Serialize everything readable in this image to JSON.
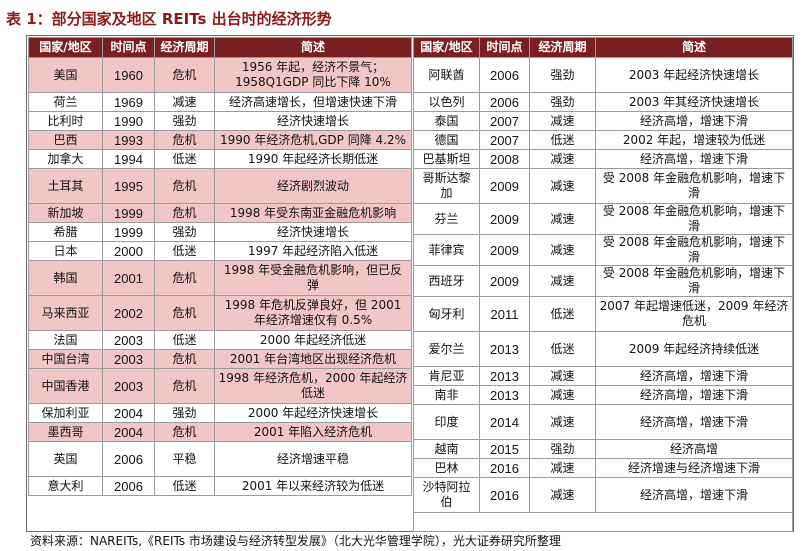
{
  "title": "表 1：部分国家及地区 REITs 出台时的经济形势",
  "headers": [
    "国家/地区",
    "时间点",
    "经济周期",
    "简述"
  ],
  "left_rows": [
    {
      "country": "美国",
      "year": "1960",
      "cycle": "危机",
      "desc": "1956 年起，经济不景气；1958Q1GDP 同比下降 10%",
      "crisis": true,
      "h": "r2"
    },
    {
      "country": "荷兰",
      "year": "1969",
      "cycle": "减速",
      "desc": "经济高速增长，但增速快速下滑",
      "crisis": false,
      "h": "r1"
    },
    {
      "country": "比利时",
      "year": "1990",
      "cycle": "强劲",
      "desc": "经济快速增长",
      "crisis": false,
      "h": "r1"
    },
    {
      "country": "巴西",
      "year": "1993",
      "cycle": "危机",
      "desc": "1990 年经济危机,GDP 同降 4.2%",
      "crisis": true,
      "h": "r1"
    },
    {
      "country": "加拿大",
      "year": "1994",
      "cycle": "低迷",
      "desc": "1990 年起经济长期低迷",
      "crisis": false,
      "h": "r1"
    },
    {
      "country": "土耳其",
      "year": "1995",
      "cycle": "危机",
      "desc": "经济剧烈波动",
      "crisis": true,
      "h": "r2"
    },
    {
      "country": "新加坡",
      "year": "1999",
      "cycle": "危机",
      "desc": "1998 年受东南亚金融危机影响",
      "crisis": true,
      "h": "r1"
    },
    {
      "country": "希腊",
      "year": "1999",
      "cycle": "强劲",
      "desc": "经济快速增长",
      "crisis": false,
      "h": "r1"
    },
    {
      "country": "日本",
      "year": "2000",
      "cycle": "低迷",
      "desc": "1997 年起经济陷入低迷",
      "crisis": false,
      "h": "r1"
    },
    {
      "country": "韩国",
      "year": "2001",
      "cycle": "危机",
      "desc": "1998 年受金融危机影响，但已反弹",
      "crisis": true,
      "h": "r2"
    },
    {
      "country": "马来西亚",
      "year": "2002",
      "cycle": "危机",
      "desc": "1998 年危机反弹良好，但 2001 年经济增速仅有 0.5%",
      "crisis": true,
      "h": "r2"
    },
    {
      "country": "法国",
      "year": "2003",
      "cycle": "低迷",
      "desc": "2000 年起经济低迷",
      "crisis": false,
      "h": "r1"
    },
    {
      "country": "中国台湾",
      "year": "2003",
      "cycle": "危机",
      "desc": "2001 年台湾地区出现经济危机",
      "crisis": true,
      "h": "r1"
    },
    {
      "country": "中国香港",
      "year": "2003",
      "cycle": "危机",
      "desc": "1998 年经济危机，2000 年起经济低迷",
      "crisis": true,
      "h": "r2"
    },
    {
      "country": "保加利亚",
      "year": "2004",
      "cycle": "强劲",
      "desc": "2000 年起经济快速增长",
      "crisis": false,
      "h": "r1"
    },
    {
      "country": "墨西哥",
      "year": "2004",
      "cycle": "危机",
      "desc": "2001 年陷入经济危机",
      "crisis": true,
      "h": "r1"
    },
    {
      "country": "英国",
      "year": "2006",
      "cycle": "平稳",
      "desc": "经济增速平稳",
      "crisis": false,
      "h": "r2"
    },
    {
      "country": "意大利",
      "year": "2006",
      "cycle": "低迷",
      "desc": "2001 年以来经济较为低迷",
      "crisis": false,
      "h": "r1"
    }
  ],
  "right_rows": [
    {
      "country": "阿联酋",
      "year": "2006",
      "cycle": "强劲",
      "desc": "2003 年起经济快速增长",
      "h": "r2"
    },
    {
      "country": "以色列",
      "year": "2006",
      "cycle": "强劲",
      "desc": "2003 年其经济快速增长",
      "h": "r1"
    },
    {
      "country": "泰国",
      "year": "2007",
      "cycle": "减速",
      "desc": "经济高增，增速下滑",
      "h": "r1"
    },
    {
      "country": "德国",
      "year": "2007",
      "cycle": "低迷",
      "desc": "2002 年起，增速较为低迷",
      "h": "r1"
    },
    {
      "country": "巴基斯坦",
      "year": "2008",
      "cycle": "减速",
      "desc": "经济高增，增速下滑",
      "h": "r1"
    },
    {
      "country": "哥斯达黎加",
      "year": "2009",
      "cycle": "减速",
      "desc": "受 2008 年金融危机影响，增速下滑",
      "h": "r2"
    },
    {
      "country": "芬兰",
      "year": "2009",
      "cycle": "减速",
      "desc": "受 2008 年金融危机影响，增速下滑",
      "h": "r1"
    },
    {
      "country": "菲律宾",
      "year": "2009",
      "cycle": "减速",
      "desc": "受 2008 年金融危机影响，增速下滑",
      "h": "r1"
    },
    {
      "country": "西班牙",
      "year": "2009",
      "cycle": "减速",
      "desc": "受 2008 年金融危机影响，增速下滑",
      "h": "r1"
    },
    {
      "country": "匈牙利",
      "year": "2011",
      "cycle": "低迷",
      "desc": "2007 年起增速低迷，2009 年经济危机",
      "h": "r2"
    },
    {
      "country": "爱尔兰",
      "year": "2013",
      "cycle": "低迷",
      "desc": "2009 年起经济持续低迷",
      "h": "r2"
    },
    {
      "country": "肯尼亚",
      "year": "2013",
      "cycle": "减速",
      "desc": "经济高增，增速下滑",
      "h": "r1"
    },
    {
      "country": "南非",
      "year": "2013",
      "cycle": "减速",
      "desc": "经济高增，增速下滑",
      "h": "r1"
    },
    {
      "country": "印度",
      "year": "2014",
      "cycle": "减速",
      "desc": "经济高增，增速下滑",
      "h": "r2"
    },
    {
      "country": "越南",
      "year": "2015",
      "cycle": "强劲",
      "desc": "经济高增",
      "h": "r1"
    },
    {
      "country": "巴林",
      "year": "2016",
      "cycle": "减速",
      "desc": "经济增速与经济增速下滑",
      "h": "r1"
    },
    {
      "country": "沙特阿拉伯",
      "year": "2016",
      "cycle": "减速",
      "desc": "经济高增，增速下滑",
      "h": "r2"
    }
  ],
  "source": "资料来源：NAREITs,《REITs 市场建设与经济转型发展》（北大光华管理学院），光大证券研究所整理",
  "colors": {
    "header_bg": "#7a1f1f",
    "crisis_bg": "#f2c6c6",
    "title": "#8b1a1a"
  }
}
